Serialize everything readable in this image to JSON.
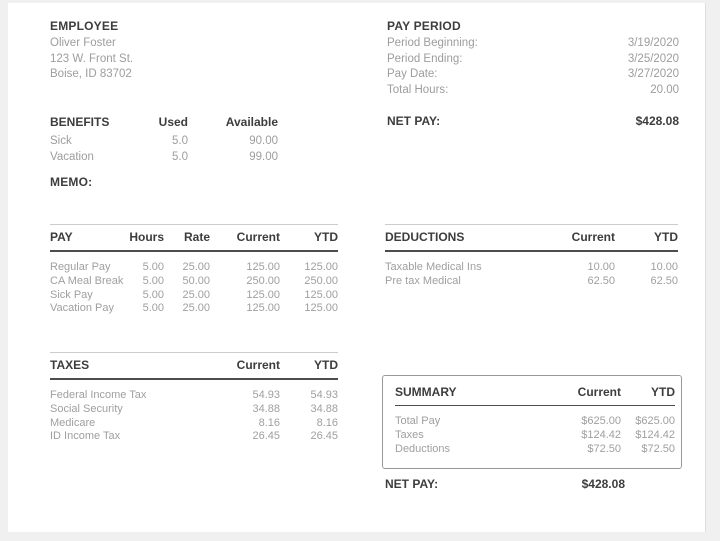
{
  "employee": {
    "title": "EMPLOYEE",
    "name": "Oliver Foster",
    "address_line1": "123 W. Front St.",
    "address_line2": "Boise, ID 83702"
  },
  "pay_period": {
    "title": "PAY PERIOD",
    "rows": [
      {
        "label": "Period Beginning:",
        "value": "3/19/2020"
      },
      {
        "label": "Period Ending:",
        "value": "3/25/2020"
      },
      {
        "label": "Pay Date:",
        "value": "3/27/2020"
      },
      {
        "label": "Total Hours:",
        "value": "20.00"
      }
    ]
  },
  "benefits": {
    "title": "BENEFITS",
    "columns": [
      "Used",
      "Available"
    ],
    "rows": [
      {
        "name": "Sick",
        "used": "5.0",
        "available": "90.00"
      },
      {
        "name": "Vacation",
        "used": "5.0",
        "available": "99.00"
      }
    ]
  },
  "net_pay_top": {
    "label": "NET PAY:",
    "value": "$428.08"
  },
  "memo": {
    "title": "MEMO:"
  },
  "pay_table": {
    "title": "PAY",
    "columns": [
      "Hours",
      "Rate",
      "Current",
      "YTD"
    ],
    "rows": [
      {
        "name": "Regular Pay",
        "hours": "5.00",
        "rate": "25.00",
        "current": "125.00",
        "ytd": "125.00"
      },
      {
        "name": "CA Meal Break",
        "hours": "5.00",
        "rate": "50.00",
        "current": "250.00",
        "ytd": "250.00"
      },
      {
        "name": "Sick Pay",
        "hours": "5.00",
        "rate": "25.00",
        "current": "125.00",
        "ytd": "125.00"
      },
      {
        "name": "Vacation Pay",
        "hours": "5.00",
        "rate": "25.00",
        "current": "125.00",
        "ytd": "125.00"
      }
    ]
  },
  "deductions_table": {
    "title": "DEDUCTIONS",
    "columns": [
      "Current",
      "YTD"
    ],
    "rows": [
      {
        "name": "Taxable Medical Ins",
        "current": "10.00",
        "ytd": "10.00"
      },
      {
        "name": "Pre tax Medical",
        "current": "62.50",
        "ytd": "62.50"
      }
    ]
  },
  "taxes_table": {
    "title": "TAXES",
    "columns": [
      "Current",
      "YTD"
    ],
    "rows": [
      {
        "name": "Federal Income Tax",
        "current": "54.93",
        "ytd": "54.93"
      },
      {
        "name": "Social Security",
        "current": "34.88",
        "ytd": "34.88"
      },
      {
        "name": "Medicare",
        "current": "8.16",
        "ytd": "8.16"
      },
      {
        "name": "ID Income Tax",
        "current": "26.45",
        "ytd": "26.45"
      }
    ]
  },
  "summary": {
    "title": "SUMMARY",
    "columns": [
      "Current",
      "YTD"
    ],
    "rows": [
      {
        "name": "Total Pay",
        "current": "$625.00",
        "ytd": "$625.00"
      },
      {
        "name": "Taxes",
        "current": "$124.42",
        "ytd": "$124.42"
      },
      {
        "name": "Deductions",
        "current": "$72.50",
        "ytd": "$72.50"
      }
    ]
  },
  "net_pay_bottom": {
    "label": "NET PAY:",
    "value": "$428.08"
  },
  "colors": {
    "heading": "#3d3d3d",
    "body_text": "#9d9d9d",
    "rule_dark": "#4d4d4d",
    "rule_light": "#cccccc",
    "summary_box_border": "#999999",
    "page_background": "#f0f0f0",
    "sheet_background": "#ffffff"
  }
}
